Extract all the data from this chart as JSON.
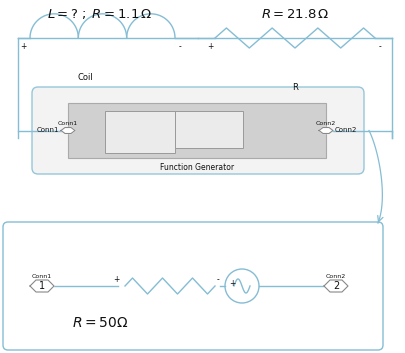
{
  "bg_color": "#ffffff",
  "line_color": "#85bdd4",
  "text_color": "#111111",
  "title1": "$L = ? \\; ; \\; R = 1.1\\,\\Omega$",
  "title2": "$R = 21.8\\,\\Omega$",
  "label_coil": "Coil",
  "label_R": "R",
  "label_fg": "Function Generator",
  "label_conn1_top": "Conn1",
  "label_conn2_top": "Conn2",
  "label_conn1_bot": "Conn1",
  "label_conn2_bot": "Conn2",
  "label_r50": "$R = 50\\Omega$",
  "figw": 4.06,
  "figh": 3.53,
  "dpi": 100
}
